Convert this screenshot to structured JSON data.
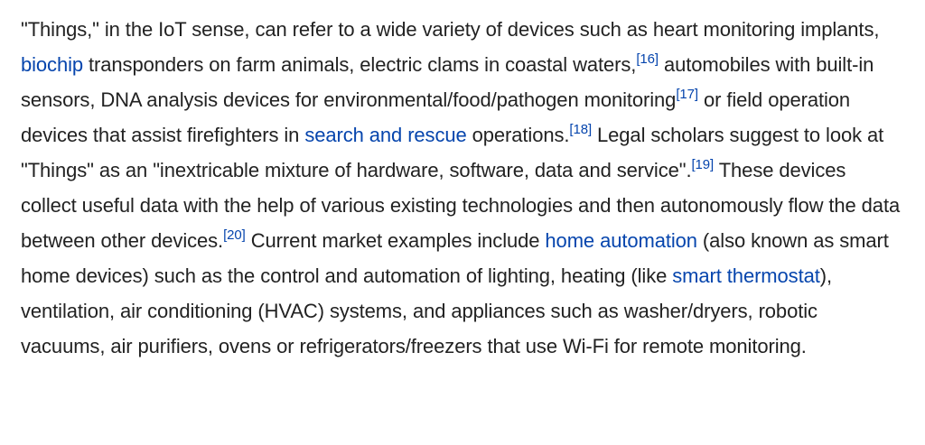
{
  "paragraph": {
    "s01": "\"Things,\" in the IoT sense, can refer to a wide variety of devices such as heart monitoring implants, ",
    "link_biochip": "biochip",
    "s02": " transponders on farm animals, electric clams in coastal waters,",
    "ref16": "[16]",
    "s03": " automobiles with built-in sensors, DNA analysis devices for environmental/food/pathogen monitoring",
    "ref17": "[17]",
    "s04": " or field operation devices that assist firefighters in ",
    "link_search_rescue": "search and rescue",
    "s05": " operations.",
    "ref18": "[18]",
    "s06": " Legal scholars suggest to look at \"Things\" as an \"inextricable mixture of hardware, software, data and service\".",
    "ref19": "[19]",
    "s07": " These devices collect useful data with the help of various existing technologies and then autonomously flow the data between other devices.",
    "ref20": "[20]",
    "s08": " Current market examples include ",
    "link_home_automation": "home automation",
    "s09": " (also known as smart home devices) such as the control and automation of lighting, heating (like ",
    "link_smart_thermostat": "smart thermostat",
    "s10": "), ventilation, air conditioning (HVAC) systems, and appliances such as washer/dryers, robotic vacuums, air purifiers, ovens or refrigerators/freezers that use Wi-Fi for remote monitoring."
  },
  "colors": {
    "text": "#222222",
    "link": "#0645ad",
    "background": "#ffffff"
  }
}
